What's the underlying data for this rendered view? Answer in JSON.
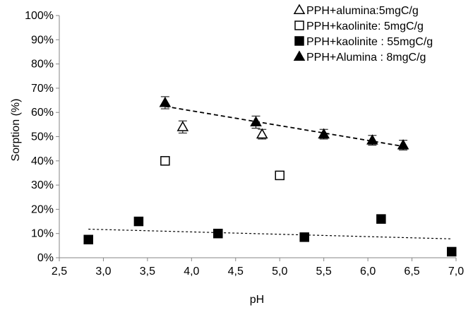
{
  "chart_data": {
    "type": "scatter",
    "xlabel": "pH",
    "ylabel": "Sorption (%)",
    "xlim": [
      2.5,
      7.0
    ],
    "ylim": [
      0,
      100
    ],
    "x_ticks": [
      "2,5",
      "3,0",
      "3,5",
      "4,0",
      "4,5",
      "5,0",
      "5,5",
      "6,0",
      "6,5",
      "7,0"
    ],
    "y_ticks": [
      "0%",
      "10%",
      "20%",
      "30%",
      "40%",
      "50%",
      "60%",
      "70%",
      "80%",
      "90%",
      "100%"
    ],
    "grid": false,
    "legend_position": "top-right",
    "series": [
      {
        "name": "PPH+alumina:5mgC/g",
        "marker": "triangle-open",
        "color": "#000000",
        "points": [
          {
            "x": 3.9,
            "y": 54,
            "err": 2.5
          },
          {
            "x": 4.8,
            "y": 51,
            "err": 2.0
          }
        ]
      },
      {
        "name": "PPH+kaolinite: 5mgC/g",
        "marker": "square-open",
        "color": "#000000",
        "points": [
          {
            "x": 3.7,
            "y": 40
          },
          {
            "x": 5.0,
            "y": 34
          }
        ]
      },
      {
        "name": "PPH+kaolinite : 55mgC/g",
        "marker": "square-filled",
        "color": "#000000",
        "points": [
          {
            "x": 2.83,
            "y": 7.5
          },
          {
            "x": 3.4,
            "y": 15
          },
          {
            "x": 4.3,
            "y": 10
          },
          {
            "x": 5.28,
            "y": 8.5
          },
          {
            "x": 6.15,
            "y": 16
          },
          {
            "x": 6.95,
            "y": 2.5
          }
        ],
        "trend": {
          "x1": 2.83,
          "y1": 11.8,
          "x2": 6.95,
          "y2": 7.8,
          "style": "fine-dashed"
        }
      },
      {
        "name": "PPH+Alumina : 8mgC/g",
        "marker": "triangle-filled",
        "color": "#000000",
        "points": [
          {
            "x": 3.7,
            "y": 64,
            "err": 2.5
          },
          {
            "x": 4.73,
            "y": 56,
            "err": 2.5
          },
          {
            "x": 5.5,
            "y": 51,
            "err": 2.0
          },
          {
            "x": 6.05,
            "y": 48.5,
            "err": 2.0
          },
          {
            "x": 6.4,
            "y": 46.5,
            "err": 2.0
          }
        ],
        "trend": {
          "x1": 3.7,
          "y1": 62.5,
          "x2": 6.4,
          "y2": 46.0,
          "style": "dashed"
        }
      }
    ]
  }
}
